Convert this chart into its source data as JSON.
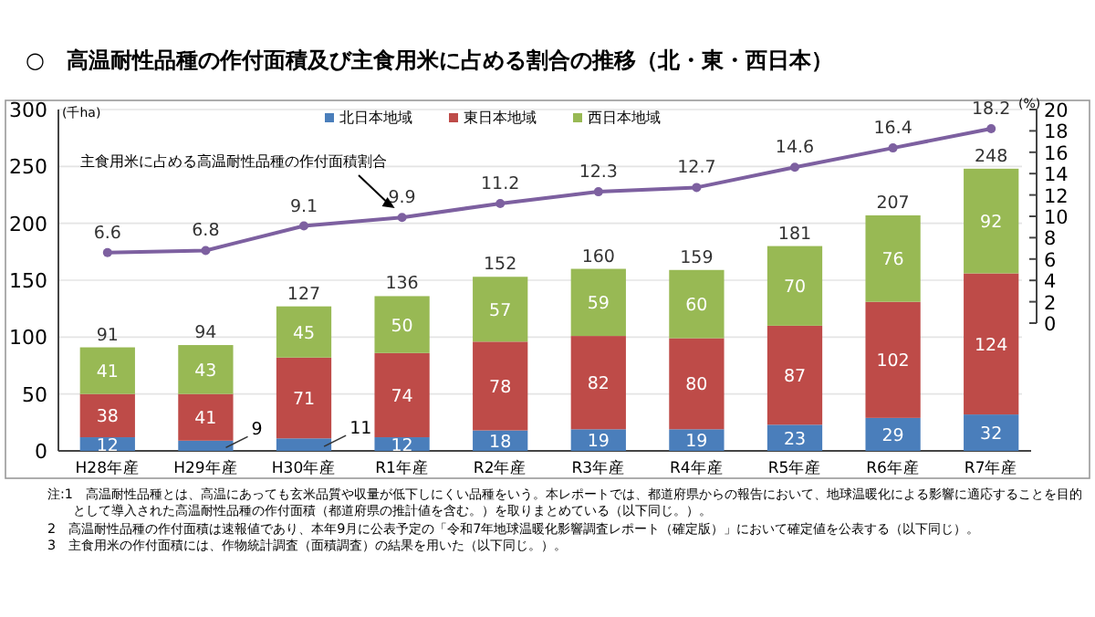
{
  "chart_data": {
    "type": "bar",
    "stacked": true,
    "title": "○　高温耐性品種の作付面積及び主食用米に占める割合の推移（北・東・西日本）",
    "categories": [
      "H28年産",
      "H29年産",
      "H30年産",
      "R1年産",
      "R2年産",
      "R3年産",
      "R4年産",
      "R5年産",
      "R6年産",
      "R7年産"
    ],
    "series": [
      {
        "name": "北日本地域",
        "color": "#4a7ebb",
        "values": [
          12,
          9,
          11,
          12,
          18,
          19,
          19,
          23,
          29,
          32
        ]
      },
      {
        "name": "東日本地域",
        "color": "#be4b48",
        "values": [
          38,
          41,
          71,
          74,
          78,
          82,
          80,
          87,
          102,
          124
        ]
      },
      {
        "name": "西日本地域",
        "color": "#98b954",
        "values": [
          41,
          43,
          45,
          50,
          57,
          59,
          60,
          70,
          76,
          92
        ]
      },
      {
        "name": "主食用米に占める高温耐性品種の作付面積割合",
        "type": "line",
        "axis": "y2",
        "color": "#7d60a0",
        "values": [
          6.6,
          6.8,
          9.1,
          9.9,
          11.2,
          12.3,
          12.7,
          14.6,
          16.4,
          18.2
        ]
      }
    ],
    "totals": [
      "91",
      "94",
      "127",
      "136",
      "152",
      "160",
      "159",
      "181",
      "207",
      "248"
    ],
    "data_labels": true,
    "marker": "circle",
    "grid": "y",
    "legend": "top",
    "ylabel": "(千ha)",
    "y2label": "(%)",
    "ylim": [
      0,
      300
    ],
    "yticks": [
      0,
      50,
      100,
      150,
      200,
      250,
      300
    ],
    "y2lim": [
      0,
      20
    ],
    "y2ticks": [
      0,
      2,
      4,
      6,
      8,
      10,
      12,
      14,
      16,
      18,
      20
    ],
    "annotations": [
      "注:1　高温耐性品種とは、高温にあっても玄米品質や収量が低下しにくい品種をいう。本レポートでは、都道府県からの報告において、地球温暖化による影響に適応することを目的として導入された高温耐性品種の作付面積（都道府県の推計値を含む。）を取りまとめている（以下同じ。）。",
      "2　高温耐性品種の作付面積は速報値であり、本年9月に公表予定の「令和7年地球温暖化影響調査レポート（確定版）」において確定値を公表する（以下同じ）。",
      "3　主食用米の作付面積には、作物統計調査（面積調査）の結果を用いた（以下同じ。）。"
    ]
  }
}
